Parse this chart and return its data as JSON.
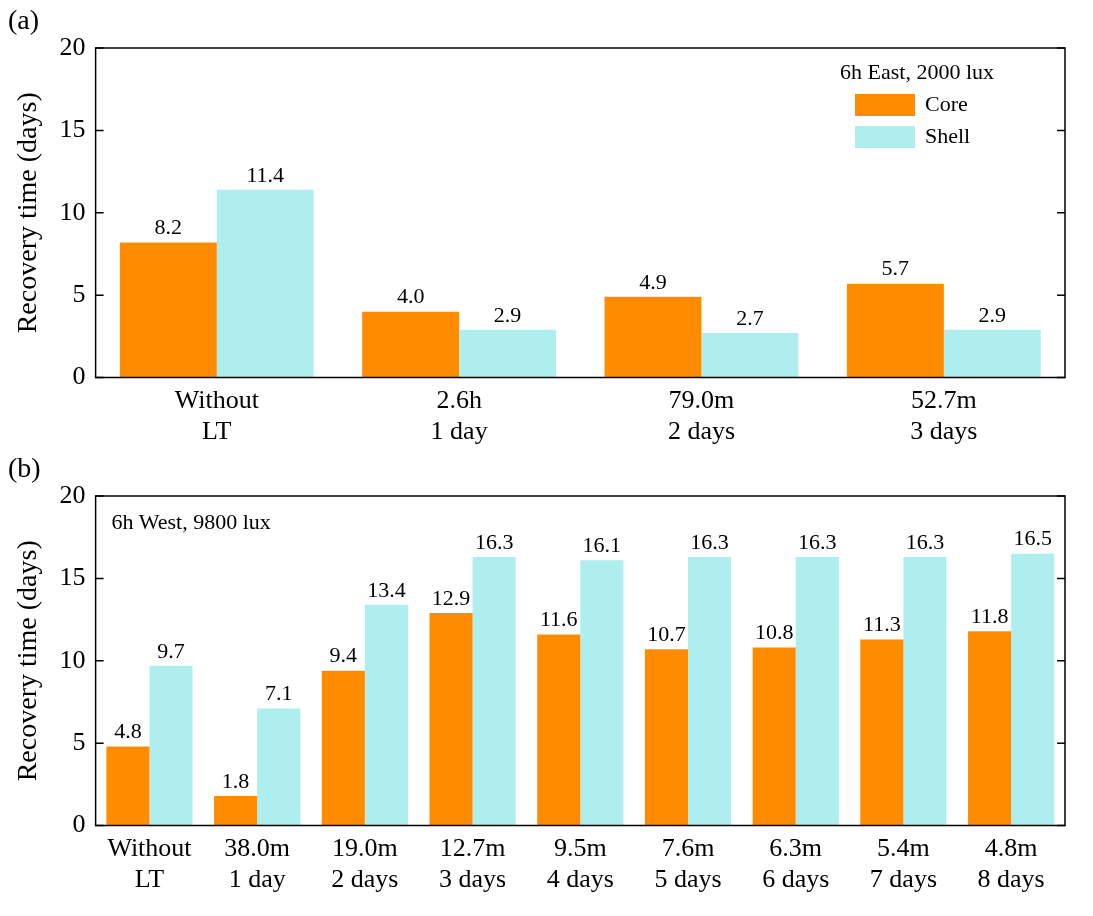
{
  "chart_data": [
    {
      "type": "bar",
      "title": "(a)",
      "ylabel": "Recovery time (days)",
      "categories": [
        "Without\nLT",
        "2.6h\n1 day",
        "79.0m\n2 days",
        "52.7m\n3 days"
      ],
      "legend_title": "6h East, 2000 lux",
      "legend": "top right",
      "series": [
        {
          "name": "Core",
          "color": "#ff8c00",
          "values": [
            8.2,
            4.0,
            4.9,
            5.7
          ],
          "value_labels": [
            "8.2",
            "4.0",
            "4.9",
            "5.7"
          ]
        },
        {
          "name": "Shell",
          "color": "#afeeee",
          "values": [
            11.4,
            2.9,
            2.7,
            2.9
          ],
          "value_labels": [
            "11.4",
            "2.9",
            "2.7",
            "2.9"
          ]
        }
      ],
      "ylim": [
        0,
        20
      ],
      "yticks": [
        0,
        5,
        10,
        15,
        20
      ],
      "grid": false
    },
    {
      "type": "bar",
      "title": "(b)",
      "ylabel": "Recovery time (days)",
      "categories": [
        "Without\nLT",
        "38.0m\n1 day",
        "19.0m\n2 days",
        "12.7m\n3 days",
        "9.5m\n4 days",
        "7.6m\n5 days",
        "6.3m\n6 days",
        "5.4m\n7 days",
        "4.8m\n8 days"
      ],
      "annotations": [
        "6h West, 9800 lux"
      ],
      "series": [
        {
          "color": "#ff8c00",
          "values": [
            4.8,
            1.8,
            9.4,
            12.9,
            11.6,
            10.7,
            10.8,
            11.3,
            11.8
          ],
          "value_labels": [
            "4.8",
            "1.8",
            "9.4",
            "12.9",
            "11.6",
            "10.7",
            "10.8",
            "11.3",
            "11.8"
          ]
        },
        {
          "color": "#afeeee",
          "values": [
            9.7,
            7.1,
            13.4,
            16.3,
            16.1,
            16.3,
            16.3,
            16.3,
            16.5
          ],
          "value_labels": [
            "9.7",
            "7.1",
            "13.4",
            "16.3",
            "16.1",
            "16.3",
            "16.3",
            "16.3",
            "16.5"
          ]
        }
      ],
      "ylim": [
        0,
        20
      ],
      "yticks": [
        0,
        5,
        10,
        15,
        20
      ],
      "grid": false
    }
  ]
}
